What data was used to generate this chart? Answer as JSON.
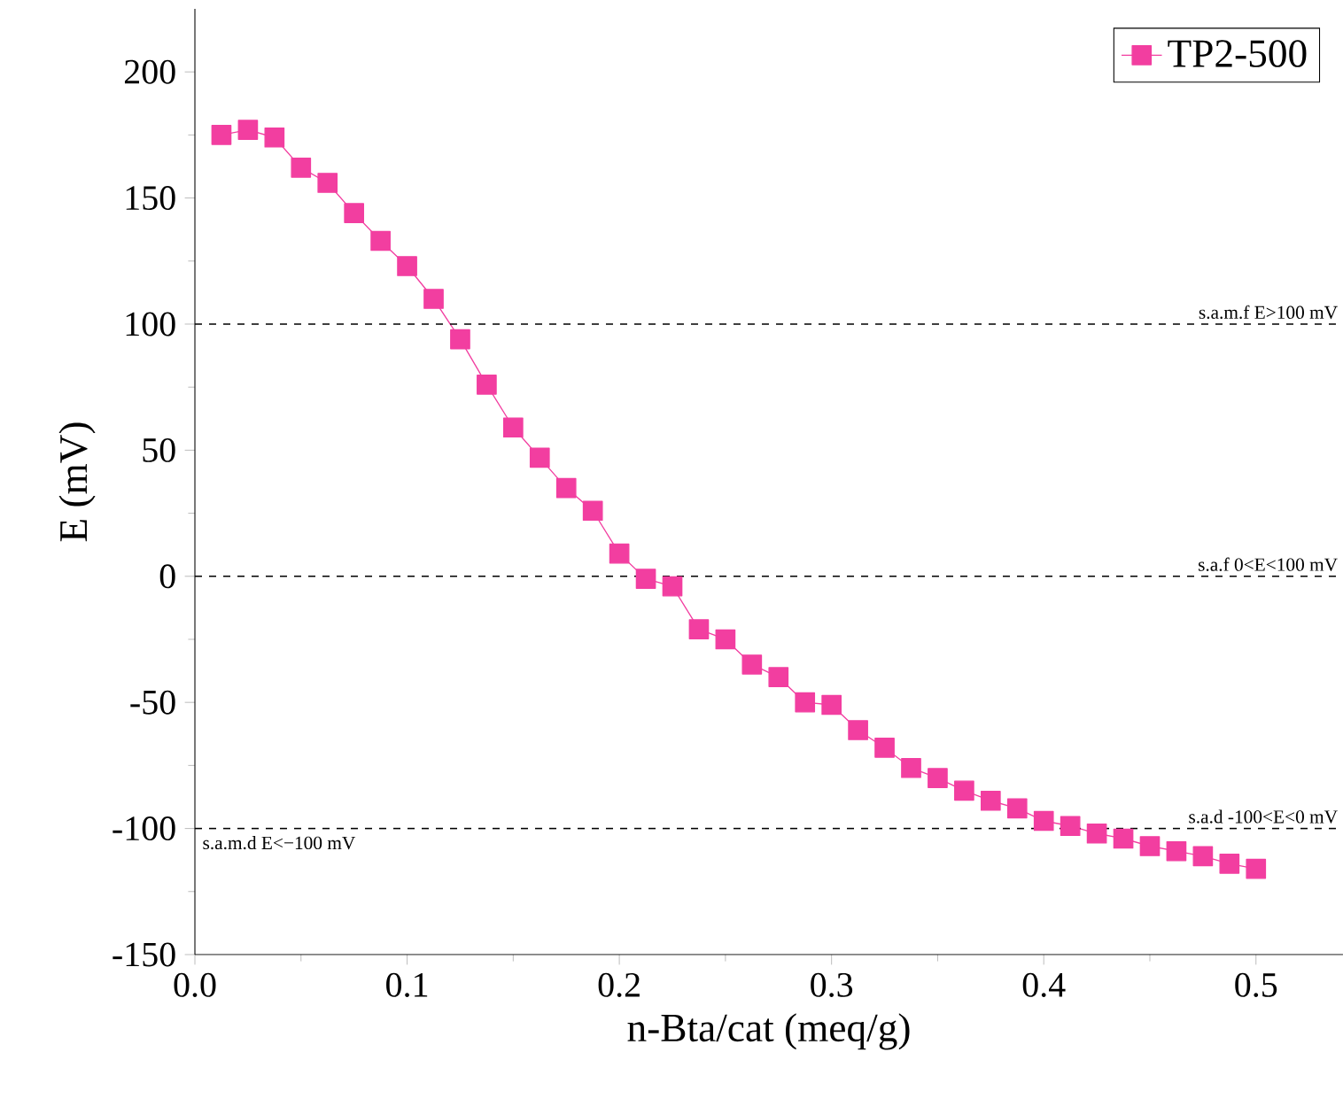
{
  "chart_data": {
    "type": "line",
    "xlabel": "n-Bta/cat (meq/g)",
    "ylabel": "E (mV)",
    "x": [
      0.0125,
      0.025,
      0.0375,
      0.05,
      0.0625,
      0.075,
      0.0875,
      0.1,
      0.1125,
      0.125,
      0.1375,
      0.15,
      0.1625,
      0.175,
      0.1875,
      0.2,
      0.2125,
      0.225,
      0.2375,
      0.25,
      0.2625,
      0.275,
      0.2875,
      0.3,
      0.3125,
      0.325,
      0.3375,
      0.35,
      0.3625,
      0.375,
      0.3875,
      0.4,
      0.4125,
      0.425,
      0.4375,
      0.45,
      0.4625,
      0.475,
      0.4875,
      0.5
    ],
    "series": [
      {
        "name": "TP2-500",
        "color": "#f23ea0",
        "values": [
          175,
          177,
          174,
          162,
          156,
          144,
          133,
          123,
          110,
          94,
          76,
          59,
          47,
          35,
          26,
          9,
          -1,
          -4,
          -21,
          -25,
          -35,
          -40,
          -50,
          -51,
          -61,
          -68,
          -76,
          -80,
          -85,
          -89,
          -92,
          -97,
          -99,
          -102,
          -104,
          -107,
          -109,
          -111,
          -114,
          -116
        ]
      }
    ],
    "xlim": [
      0,
      0.541
    ],
    "ylim": [
      -150,
      225
    ],
    "xticks": [
      {
        "value": 0,
        "label": "0.0"
      },
      0.1,
      0.2,
      0.3,
      0.4,
      0.5
    ],
    "yticks": [
      -150,
      -100,
      -50,
      0,
      50,
      100,
      150,
      200
    ],
    "ref_lines": [
      {
        "axis": "y",
        "value": 100,
        "label": "s.a.m.f  E>100 mV",
        "color": "#000000",
        "line_style": "dashed"
      },
      {
        "axis": "y",
        "value": 0,
        "label": "s.a.f  0<E<100 mV",
        "color": "#000000",
        "line_style": "dashed"
      },
      {
        "axis": "y",
        "value": -100,
        "label": "s.a.d  -100<E<0 mV",
        "color": "#000000",
        "line_style": "dashed"
      }
    ],
    "annotations": [
      {
        "text": "s.a.m.d  E<−100 mV",
        "x": 0,
        "y": -100
      }
    ],
    "marker": "square",
    "line_style": "solid",
    "legend": "top right",
    "grid": false
  }
}
